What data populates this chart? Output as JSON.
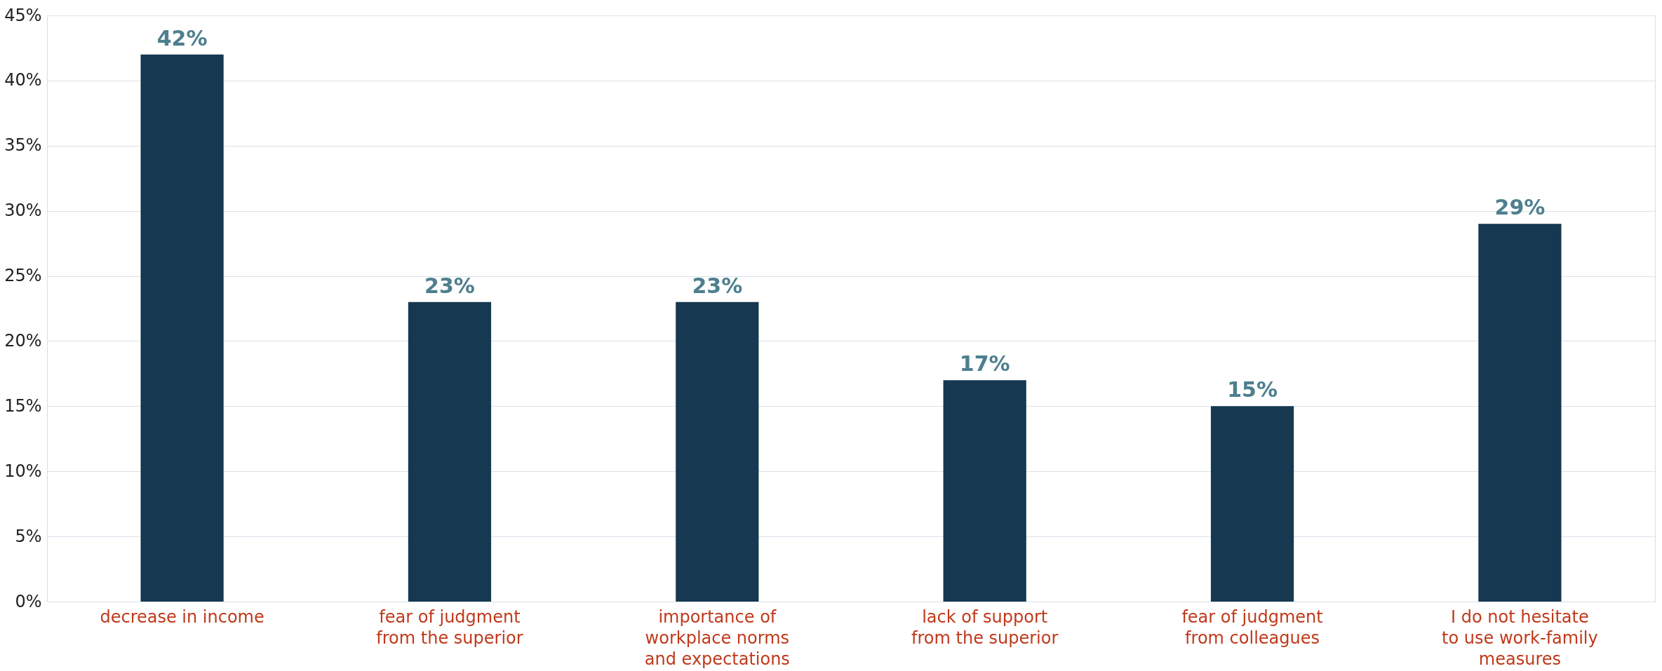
{
  "chart_data": {
    "type": "bar",
    "categories": [
      "decrease in income",
      "fear of judgment from the superior",
      "importance of workplace norms and expectations",
      "lack of support from the superior",
      "fear of judgment from colleagues",
      "I do not hesitate to use work-family measures"
    ],
    "values": [
      42,
      23,
      23,
      17,
      15,
      29
    ],
    "value_labels": [
      "42%",
      "23%",
      "23%",
      "17%",
      "15%",
      "29%"
    ],
    "color": "#163850",
    "ylim": [
      0,
      45
    ],
    "yticks": [
      {
        "value": 0,
        "label": "0%"
      },
      {
        "value": 5,
        "label": "5%"
      },
      {
        "value": 10,
        "label": "10%"
      },
      {
        "value": 15,
        "label": "15%"
      },
      {
        "value": 20,
        "label": "20%"
      },
      {
        "value": 25,
        "label": "25%"
      },
      {
        "value": 30,
        "label": "30%"
      },
      {
        "value": 35,
        "label": "35%"
      },
      {
        "value": 40,
        "label": "40%"
      },
      {
        "value": 45,
        "label": "45%"
      }
    ],
    "grid": "y"
  }
}
